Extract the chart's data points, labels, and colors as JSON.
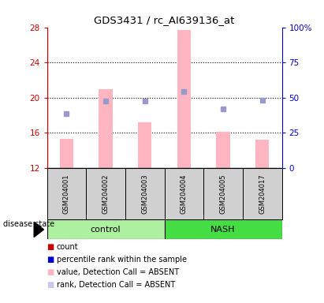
{
  "title": "GDS3431 / rc_AI639136_at",
  "samples": [
    "GSM204001",
    "GSM204002",
    "GSM204003",
    "GSM204004",
    "GSM204005",
    "GSM204017"
  ],
  "groups": {
    "control": [
      0,
      1,
      2
    ],
    "NASH": [
      3,
      4,
      5
    ]
  },
  "group_colors": {
    "control": "#adf0a0",
    "NASH": "#44dd44"
  },
  "ylim_left": [
    12,
    28
  ],
  "ylim_right": [
    0,
    100
  ],
  "yticks_left": [
    12,
    16,
    20,
    24,
    28
  ],
  "yticks_right": [
    0,
    25,
    50,
    75,
    100
  ],
  "left_axis_color": "#cc0000",
  "right_axis_color": "#0000cc",
  "bar_values": [
    15.3,
    21.0,
    17.2,
    27.7,
    16.1,
    15.2
  ],
  "bar_color": "#ffb6c1",
  "dot_values": [
    18.2,
    19.6,
    19.6,
    20.7,
    18.7,
    19.7
  ],
  "dot_color": "#9999cc",
  "bar_bottom": 12,
  "grid_yticks": [
    16,
    20,
    24
  ],
  "legend_items": [
    {
      "color": "#cc0000",
      "label": "count"
    },
    {
      "color": "#0000cc",
      "label": "percentile rank within the sample"
    },
    {
      "color": "#ffb6c1",
      "label": "value, Detection Call = ABSENT"
    },
    {
      "color": "#c8c8e8",
      "label": "rank, Detection Call = ABSENT"
    }
  ],
  "disease_state_label": "disease state",
  "control_label": "control",
  "nash_label": "NASH",
  "sample_box_color": "#d0d0d0",
  "figsize": [
    4.11,
    3.84
  ],
  "dpi": 100
}
